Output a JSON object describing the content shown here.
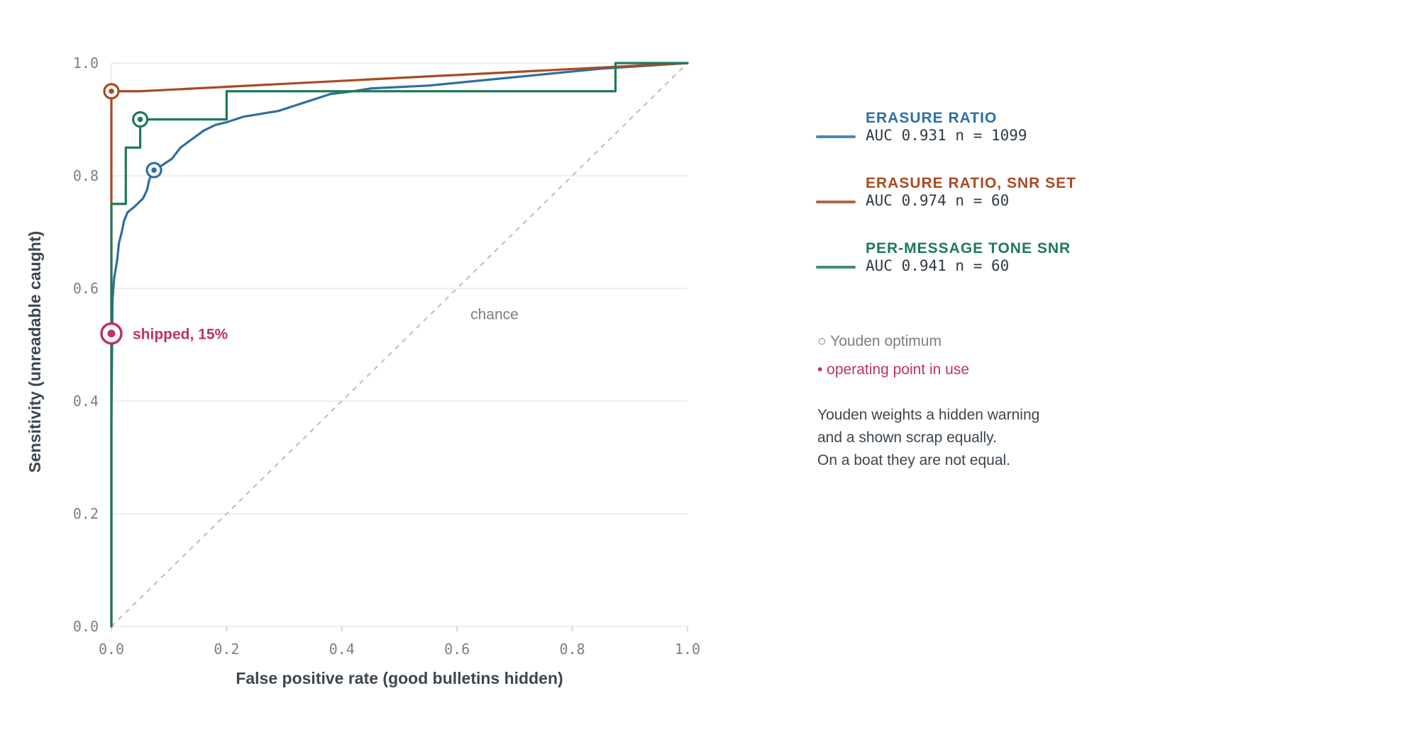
{
  "chart_data": {
    "type": "line",
    "xlabel": "False positive rate (good bulletins hidden)",
    "ylabel": "Sensitivity (unreadable caught)",
    "xlim": [
      0,
      1
    ],
    "ylim": [
      0,
      1
    ],
    "x_ticks": [
      "0.0",
      "0.2",
      "0.4",
      "0.6",
      "0.8",
      "1.0"
    ],
    "y_ticks": [
      "0.0",
      "0.2",
      "0.4",
      "0.6",
      "0.8",
      "1.0"
    ],
    "grid": "horizontal",
    "legend_position": "right",
    "series": [
      {
        "name": "ERASURE RATIO",
        "auc_label": "AUC 0.931 n = 1099",
        "color": "#2e6fa3",
        "points": [
          [
            0,
            0
          ],
          [
            0,
            0.36
          ],
          [
            0.002,
            0.58
          ],
          [
            0.005,
            0.62
          ],
          [
            0.01,
            0.65
          ],
          [
            0.013,
            0.68
          ],
          [
            0.018,
            0.7
          ],
          [
            0.022,
            0.72
          ],
          [
            0.028,
            0.735
          ],
          [
            0.04,
            0.745
          ],
          [
            0.055,
            0.76
          ],
          [
            0.062,
            0.775
          ],
          [
            0.065,
            0.79
          ],
          [
            0.07,
            0.805
          ],
          [
            0.075,
            0.81
          ],
          [
            0.09,
            0.82
          ],
          [
            0.105,
            0.83
          ],
          [
            0.12,
            0.85
          ],
          [
            0.14,
            0.865
          ],
          [
            0.16,
            0.88
          ],
          [
            0.18,
            0.89
          ],
          [
            0.2,
            0.895
          ],
          [
            0.23,
            0.905
          ],
          [
            0.26,
            0.91
          ],
          [
            0.29,
            0.915
          ],
          [
            0.32,
            0.925
          ],
          [
            0.35,
            0.935
          ],
          [
            0.38,
            0.945
          ],
          [
            0.42,
            0.95
          ],
          [
            0.45,
            0.955
          ],
          [
            0.55,
            0.96
          ],
          [
            0.7,
            0.975
          ],
          [
            0.85,
            0.99
          ],
          [
            1,
            1
          ]
        ],
        "youden_point": [
          0.074,
          0.81
        ]
      },
      {
        "name": "ERASURE RATIO, SNR SET",
        "auc_label": "AUC 0.974 n = 60",
        "color": "#a84b22",
        "points": [
          [
            0,
            0
          ],
          [
            0,
            0.75
          ],
          [
            0,
            0.95
          ],
          [
            0.05,
            0.95
          ],
          [
            1,
            1
          ]
        ],
        "youden_point": [
          0,
          0.95
        ]
      },
      {
        "name": "PER-MESSAGE TONE SNR",
        "auc_label": "AUC 0.941 n = 60",
        "color": "#1e7a58",
        "points": [
          [
            0,
            0
          ],
          [
            0,
            0.75
          ],
          [
            0.025,
            0.75
          ],
          [
            0.025,
            0.85
          ],
          [
            0.05,
            0.85
          ],
          [
            0.05,
            0.9
          ],
          [
            0.2,
            0.9
          ],
          [
            0.2,
            0.95
          ],
          [
            0.875,
            0.95
          ],
          [
            0.875,
            1.0
          ],
          [
            1,
            1
          ]
        ],
        "youden_point": [
          0.05,
          0.9
        ]
      }
    ],
    "reference_line": {
      "label": "chance",
      "from": [
        0,
        0
      ],
      "to": [
        1,
        1
      ]
    },
    "operating_point": {
      "label": "shipped, 15%",
      "x": 0,
      "y": 0.52,
      "color": "#c0306a"
    }
  },
  "legend_key": {
    "youden": "○ Youden optimum",
    "operating": "• operating point in use"
  },
  "note_lines": [
    "Youden weights a hidden warning",
    "and a shown scrap equally.",
    "On a boat they are not equal."
  ],
  "colors": {
    "youden_key": "#7a7f87",
    "operating_key": "#c0306a",
    "chance": "#b9bdc2",
    "grid": "#e6e8eb"
  }
}
